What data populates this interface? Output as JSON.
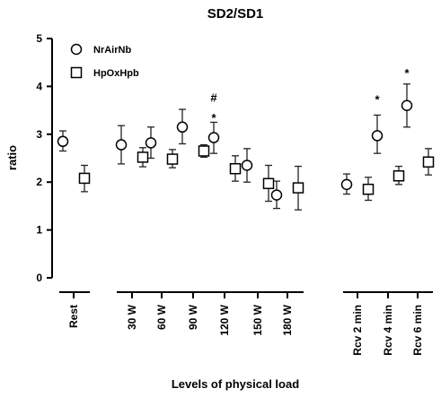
{
  "chart_data": {
    "type": "scatter",
    "title": "SD2/SD1",
    "xlabel": "Levels of physical load",
    "ylabel": "ratio",
    "ylim": [
      0,
      5
    ],
    "yticks": [
      0,
      1,
      2,
      3,
      4,
      5
    ],
    "grid": false,
    "legend_position": "top-left",
    "categories": [
      "Rest",
      "30 W",
      "60 W",
      "90 W",
      "120 W",
      "150 W",
      "180 W",
      "Rcv 2 min",
      "Rcv 4 min",
      "Rcv 6 min"
    ],
    "category_groups": [
      [
        0
      ],
      [
        1,
        2,
        3,
        4,
        5,
        6
      ],
      [
        7,
        8,
        9
      ]
    ],
    "series": [
      {
        "name": "NrAirNb",
        "marker": "circle",
        "values": [
          2.85,
          2.78,
          2.82,
          3.15,
          2.93,
          2.35,
          1.73,
          1.95,
          2.97,
          3.6
        ],
        "error_low": [
          2.65,
          2.38,
          2.5,
          2.8,
          2.6,
          2.0,
          1.45,
          1.75,
          2.6,
          3.15
        ],
        "error_high": [
          3.07,
          3.18,
          3.15,
          3.52,
          3.25,
          2.7,
          2.02,
          2.17,
          3.4,
          4.05
        ]
      },
      {
        "name": "HpOxHpb",
        "marker": "square",
        "values": [
          2.08,
          2.52,
          2.48,
          2.65,
          2.28,
          1.97,
          1.88,
          1.85,
          2.13,
          2.42
        ],
        "error_low": [
          1.8,
          2.32,
          2.3,
          2.52,
          2.02,
          1.6,
          1.42,
          1.62,
          1.95,
          2.15
        ],
        "error_high": [
          2.35,
          2.72,
          2.68,
          2.78,
          2.55,
          2.35,
          2.33,
          2.1,
          2.33,
          2.7
        ]
      }
    ],
    "annotations": [
      {
        "category_index": 4,
        "text": "#",
        "y": 3.77
      },
      {
        "category_index": 4,
        "text": "*",
        "y": 3.45
      },
      {
        "category_index": 8,
        "text": "*",
        "y": 3.83
      },
      {
        "category_index": 9,
        "text": "*",
        "y": 4.38
      }
    ]
  }
}
